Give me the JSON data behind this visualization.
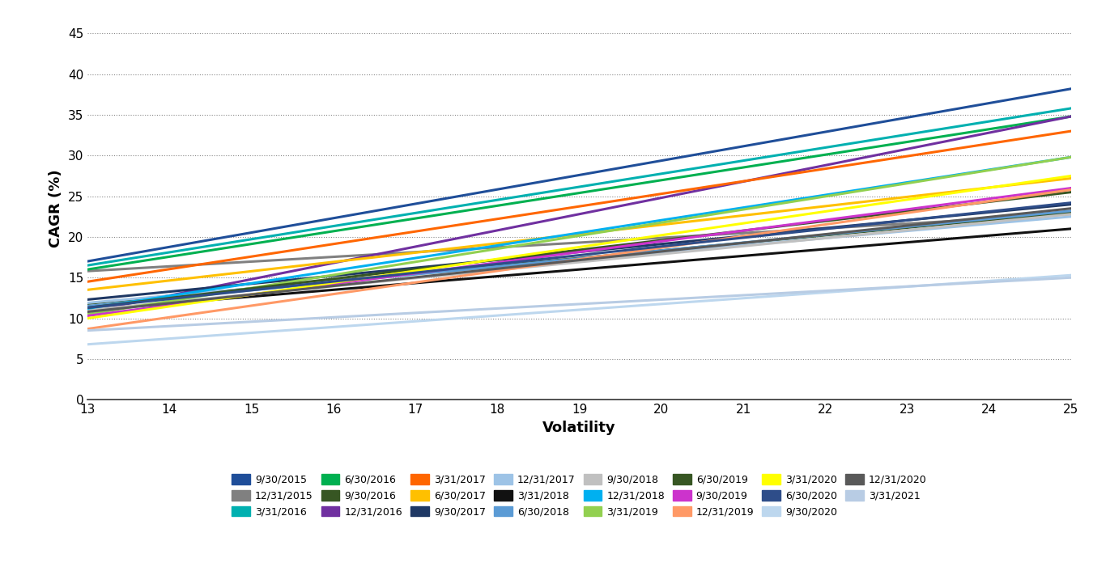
{
  "xlabel": "Volatility",
  "ylabel": "CAGR (%)",
  "xlim": [
    13,
    25
  ],
  "ylim": [
    0,
    47
  ],
  "xticks": [
    13,
    14,
    15,
    16,
    17,
    18,
    19,
    20,
    21,
    22,
    23,
    24,
    25
  ],
  "yticks": [
    0,
    5,
    10,
    15,
    20,
    25,
    30,
    35,
    40,
    45
  ],
  "series": [
    {
      "label": "9/30/2015",
      "color": "#1F4E99",
      "y_at_13": 17.0,
      "y_at_25": 38.2
    },
    {
      "label": "12/31/2015",
      "color": "#808080",
      "y_at_13": 15.8,
      "y_at_25": 22.8
    },
    {
      "label": "3/31/2016",
      "color": "#00B0B0",
      "y_at_13": 16.5,
      "y_at_25": 35.8
    },
    {
      "label": "6/30/2016",
      "color": "#00B050",
      "y_at_13": 16.0,
      "y_at_25": 34.8
    },
    {
      "label": "9/30/2016",
      "color": "#375623",
      "y_at_13": 11.8,
      "y_at_25": 23.0
    },
    {
      "label": "12/31/2016",
      "color": "#7030A0",
      "y_at_13": 10.8,
      "y_at_25": 34.8
    },
    {
      "label": "3/31/2017",
      "color": "#FF6600",
      "y_at_13": 14.5,
      "y_at_25": 33.0
    },
    {
      "label": "6/30/2017",
      "color": "#FFC000",
      "y_at_13": 13.5,
      "y_at_25": 27.2
    },
    {
      "label": "9/30/2017",
      "color": "#1F3864",
      "y_at_13": 12.3,
      "y_at_25": 24.0
    },
    {
      "label": "12/31/2017",
      "color": "#9DC3E6",
      "y_at_13": 11.9,
      "y_at_25": 22.5
    },
    {
      "label": "3/31/2018",
      "color": "#111111",
      "y_at_13": 11.0,
      "y_at_25": 21.0
    },
    {
      "label": "6/30/2018",
      "color": "#5B9BD5",
      "y_at_13": 11.5,
      "y_at_25": 23.2
    },
    {
      "label": "9/30/2018",
      "color": "#C0C0C0",
      "y_at_13": 11.0,
      "y_at_25": 22.8
    },
    {
      "label": "12/31/2018",
      "color": "#00B0F0",
      "y_at_13": 11.2,
      "y_at_25": 29.8
    },
    {
      "label": "3/31/2019",
      "color": "#92D050",
      "y_at_13": 10.5,
      "y_at_25": 29.8
    },
    {
      "label": "6/30/2019",
      "color": "#375623",
      "y_at_13": 11.3,
      "y_at_25": 25.5
    },
    {
      "label": "9/30/2019",
      "color": "#CC33CC",
      "y_at_13": 10.3,
      "y_at_25": 26.0
    },
    {
      "label": "12/31/2019",
      "color": "#FF9966",
      "y_at_13": 8.7,
      "y_at_25": 25.8
    },
    {
      "label": "3/31/2020",
      "color": "#FFFF00",
      "y_at_13": 10.0,
      "y_at_25": 27.5
    },
    {
      "label": "6/30/2020",
      "color": "#2E4D89",
      "y_at_13": 11.3,
      "y_at_25": 24.2
    },
    {
      "label": "9/30/2020",
      "color": "#BDD7EE",
      "y_at_13": 6.8,
      "y_at_25": 15.3
    },
    {
      "label": "12/31/2020",
      "color": "#595959",
      "y_at_13": 10.8,
      "y_at_25": 23.5
    },
    {
      "label": "3/31/2021",
      "color": "#B8CCE4",
      "y_at_13": 8.5,
      "y_at_25": 15.0
    }
  ],
  "background_color": "#FFFFFF",
  "grid_color": "#888888",
  "legend_cols": 8
}
